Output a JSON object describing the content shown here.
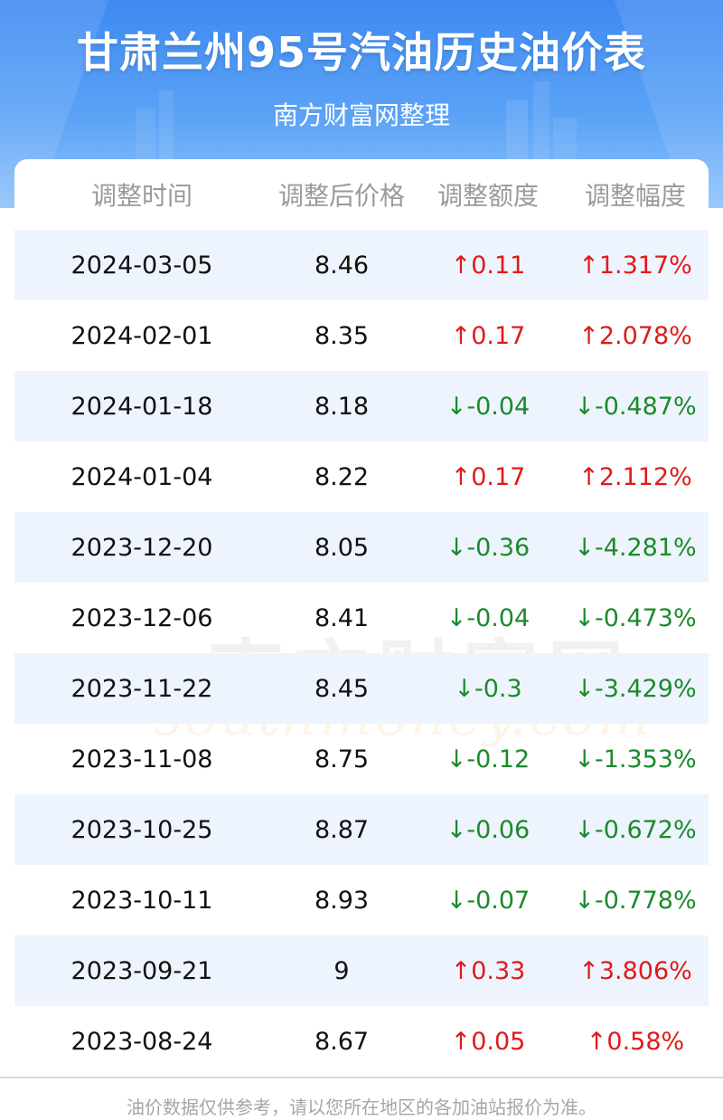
{
  "header": {
    "title": "甘肃兰州95号汽油历史油价表",
    "subtitle": "南方财富网整理"
  },
  "table": {
    "columns": [
      "调整时间",
      "调整后价格",
      "调整额度",
      "调整幅度"
    ],
    "rows": [
      {
        "date": "2024-03-05",
        "price": "8.46",
        "change": "↑0.11",
        "pct": "↑1.317%",
        "dir": "up"
      },
      {
        "date": "2024-02-01",
        "price": "8.35",
        "change": "↑0.17",
        "pct": "↑2.078%",
        "dir": "up"
      },
      {
        "date": "2024-01-18",
        "price": "8.18",
        "change": "↓-0.04",
        "pct": "↓-0.487%",
        "dir": "down"
      },
      {
        "date": "2024-01-04",
        "price": "8.22",
        "change": "↑0.17",
        "pct": "↑2.112%",
        "dir": "up"
      },
      {
        "date": "2023-12-20",
        "price": "8.05",
        "change": "↓-0.36",
        "pct": "↓-4.281%",
        "dir": "down"
      },
      {
        "date": "2023-12-06",
        "price": "8.41",
        "change": "↓-0.04",
        "pct": "↓-0.473%",
        "dir": "down"
      },
      {
        "date": "2023-11-22",
        "price": "8.45",
        "change": "↓-0.3",
        "pct": "↓-3.429%",
        "dir": "down"
      },
      {
        "date": "2023-11-08",
        "price": "8.75",
        "change": "↓-0.12",
        "pct": "↓-1.353%",
        "dir": "down"
      },
      {
        "date": "2023-10-25",
        "price": "8.87",
        "change": "↓-0.06",
        "pct": "↓-0.672%",
        "dir": "down"
      },
      {
        "date": "2023-10-11",
        "price": "8.93",
        "change": "↓-0.07",
        "pct": "↓-0.778%",
        "dir": "down"
      },
      {
        "date": "2023-09-21",
        "price": "9",
        "change": "↑0.33",
        "pct": "↑3.806%",
        "dir": "up"
      },
      {
        "date": "2023-08-24",
        "price": "8.67",
        "change": "↑0.05",
        "pct": "↑0.58%",
        "dir": "up"
      }
    ]
  },
  "watermark": {
    "cn": "南方财富网",
    "en": "southmoney.com"
  },
  "footer": {
    "note": "油价数据仅供参考，请以您所在地区的各加油站报价为准。"
  },
  "colors": {
    "header_blue": "#3f8af2",
    "row_shade": "#eef4fd",
    "up": "#e01a1a",
    "down": "#1b8a2c",
    "header_text": "#9a9a9a"
  }
}
